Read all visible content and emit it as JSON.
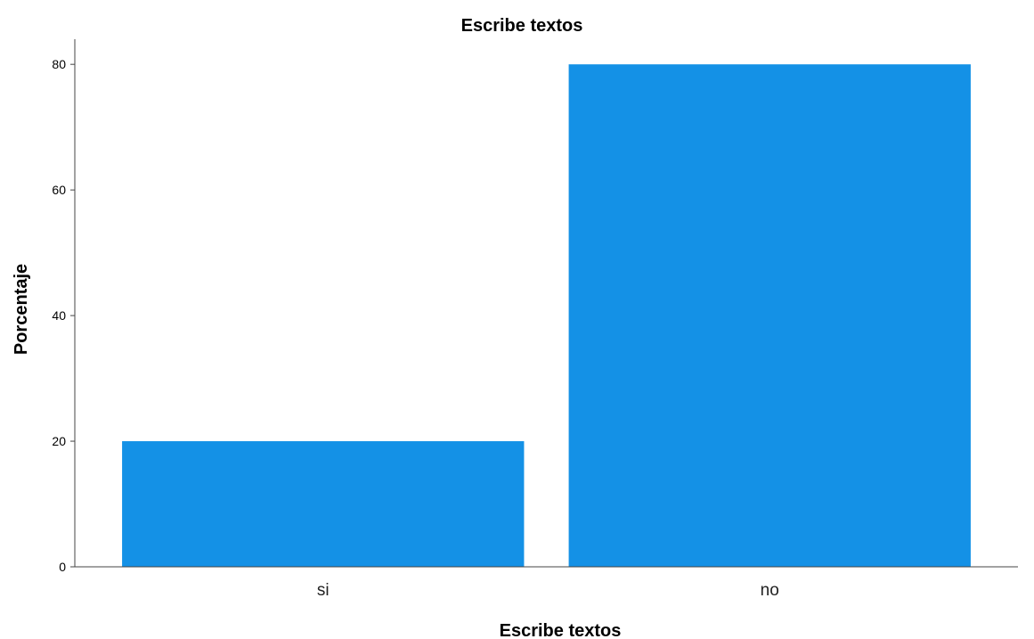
{
  "chart_data": {
    "type": "bar",
    "title": "Escribe textos",
    "xlabel": "Escribe textos",
    "ylabel": "Porcentaje",
    "categories": [
      "si",
      "no"
    ],
    "values": [
      20,
      80
    ],
    "ylim": [
      0,
      84
    ],
    "yticks": [
      "0",
      "20",
      "40",
      "60",
      "80"
    ],
    "grid": false,
    "legend": "none",
    "bar_color": "#1491E6",
    "axis_color": "#444444"
  }
}
